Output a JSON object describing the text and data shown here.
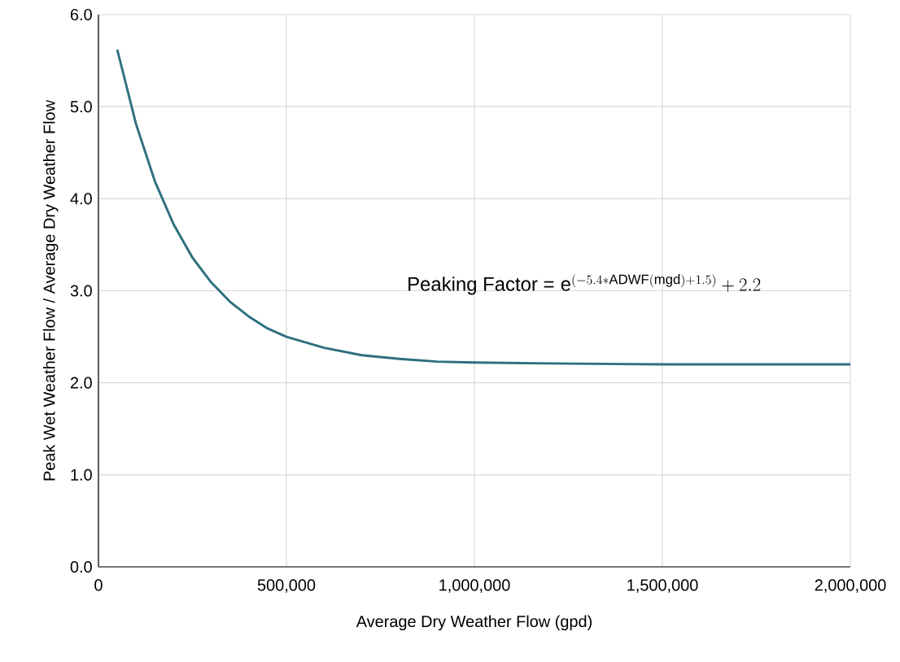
{
  "chart_data": {
    "type": "line",
    "xlabel": "Average Dry Weather Flow (gpd)",
    "ylabel": "Peak Wet Weather Flow / Average Dry Weather Flow",
    "x": [
      50000,
      100000,
      150000,
      200000,
      250000,
      300000,
      350000,
      400000,
      450000,
      500000,
      600000,
      700000,
      800000,
      900000,
      1000000,
      1200000,
      1500000,
      2000000
    ],
    "series": [
      {
        "color": "#2e6f7e",
        "values": [
          5.62,
          4.81,
          4.19,
          3.72,
          3.36,
          3.09,
          2.88,
          2.72,
          2.59,
          2.5,
          2.38,
          2.3,
          2.26,
          2.23,
          2.22,
          2.21,
          2.2,
          2.2
        ]
      }
    ],
    "xlim": [
      0,
      2000000
    ],
    "ylim": [
      0,
      6
    ],
    "xticks": [
      {
        "value": 0,
        "label": "0"
      },
      {
        "value": 500000,
        "label": "500,000"
      },
      {
        "value": 1000000,
        "label": "1,000,000"
      },
      {
        "value": 1500000,
        "label": "1,500,000"
      },
      {
        "value": 2000000,
        "label": "2,000,000"
      }
    ],
    "yticks": [
      {
        "value": 0,
        "label": "0.0"
      },
      {
        "value": 1,
        "label": "1.0"
      },
      {
        "value": 2,
        "label": "2.0"
      },
      {
        "value": 3,
        "label": "3.0"
      },
      {
        "value": 4,
        "label": "4.0"
      },
      {
        "value": 5,
        "label": "5.0"
      },
      {
        "value": 6,
        "label": "6.0"
      }
    ],
    "grid": true,
    "marker": "none",
    "line_style": "solid",
    "annotations": [
      "Peaking Factor =",
      "\\mathrm{e}^{(-5.4*\\mathrm{ADWF(mgd)}+1.5)}+2.2"
    ]
  }
}
